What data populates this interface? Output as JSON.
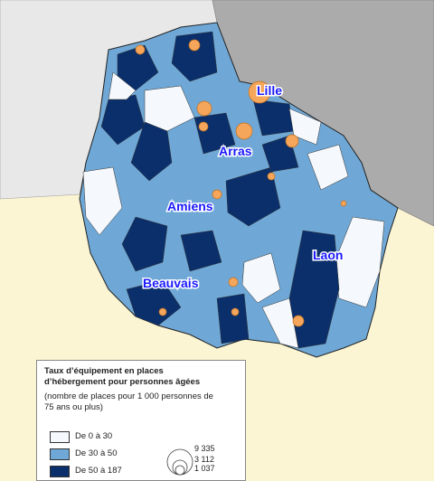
{
  "map": {
    "cities": [
      {
        "label": "Lille"
      },
      {
        "label": "Arras"
      },
      {
        "label": "Amiens"
      },
      {
        "label": "Laon"
      },
      {
        "label": "Beauvais"
      }
    ]
  },
  "legend": {
    "title": "Taux d’équipement en places d’hébergement pour personnes âgées",
    "subtitle": "(nombre de places pour 1 000 personnes de 75 ans ou plus)",
    "classes": [
      {
        "label": "De 0 à 30",
        "color": "#f5f8fc"
      },
      {
        "label": "De 30 à 50",
        "color": "#6fa8d6"
      },
      {
        "label": "De 50 à 187",
        "color": "#0b2f6b"
      }
    ],
    "sizes": [
      "9 335",
      "3 112",
      "1 037"
    ]
  }
}
